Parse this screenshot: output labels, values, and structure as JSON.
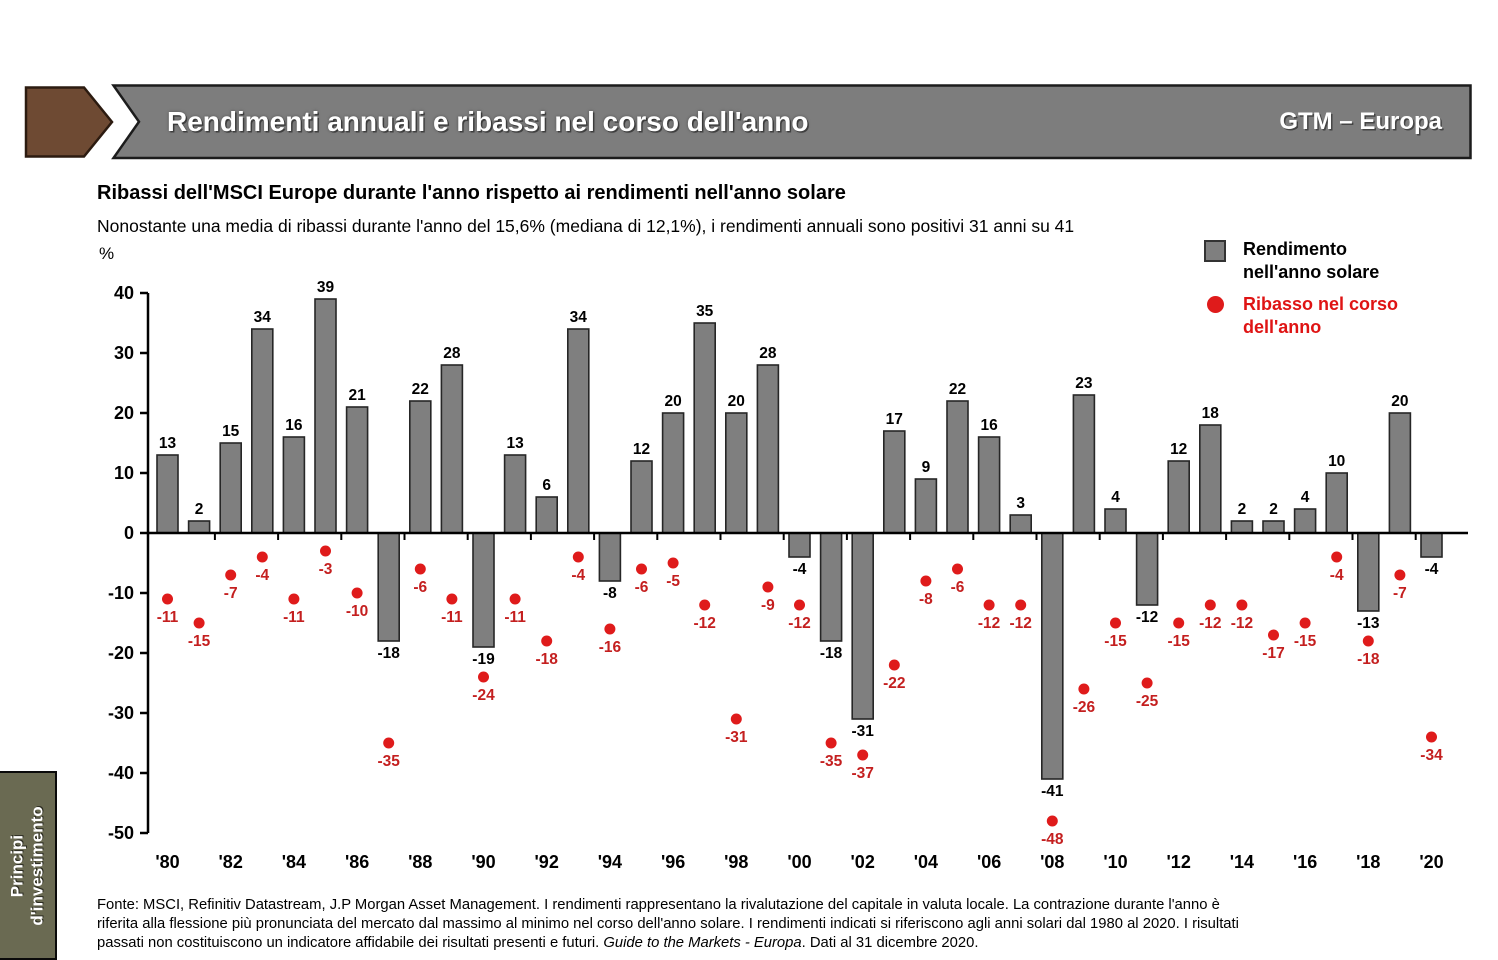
{
  "header": {
    "title": "Rendimenti annuali e ribassi nel corso dell'anno",
    "edition": "GTM – Europa"
  },
  "sidebar": {
    "line1": "Principi",
    "line2": "d'investimento"
  },
  "intro": {
    "heading": "Ribassi dell'MSCI Europe durante l'anno rispetto ai rendimenti nell'anno solare",
    "description": "Nonostante una media di ribassi durante l'anno del 15,6% (mediana di 12,1%), i rendimenti annuali sono positivi 31 anni su 41",
    "unit_label": "%"
  },
  "legend": {
    "bar_label": "Rendimento nell'anno solare",
    "dot_label": "Ribasso nel corso dell'anno",
    "bar_color": "#7f7f7f",
    "dot_color": "#df1b1b"
  },
  "chart_data": {
    "type": "bar",
    "title": "Ribassi dell'MSCI Europe durante l'anno rispetto ai rendimenti nell'anno solare",
    "subtitle": "Nonostante una media di ribassi durante l'anno del 15,6% (mediana di 12,1%), i rendimenti annuali sono positivi 31 anni su 41",
    "unit": "%",
    "grid": false,
    "legend_position": "top-right",
    "ylim": [
      -50,
      40
    ],
    "ytick_step": 10,
    "years": [
      1980,
      1981,
      1982,
      1983,
      1984,
      1985,
      1986,
      1987,
      1988,
      1989,
      1990,
      1991,
      1992,
      1993,
      1994,
      1995,
      1996,
      1997,
      1998,
      1999,
      2000,
      2001,
      2002,
      2003,
      2004,
      2005,
      2006,
      2007,
      2008,
      2009,
      2010,
      2011,
      2012,
      2013,
      2014,
      2015,
      2016,
      2017,
      2018,
      2019,
      2020
    ],
    "x_tick_labels": [
      "'80",
      "'82",
      "'84",
      "'86",
      "'88",
      "'90",
      "'92",
      "'94",
      "'96",
      "'98",
      "'00",
      "'02",
      "'04",
      "'06",
      "'08",
      "'10",
      "'12",
      "'14",
      "'16",
      "'18",
      "'20"
    ],
    "series": [
      {
        "name": "Rendimento nell'anno solare",
        "type": "bar",
        "color": "#7f7f7f",
        "values": [
          13,
          2,
          15,
          34,
          16,
          39,
          21,
          -18,
          22,
          28,
          -19,
          13,
          6,
          34,
          -8,
          12,
          20,
          35,
          20,
          28,
          -4,
          -18,
          -31,
          17,
          9,
          22,
          16,
          3,
          -41,
          23,
          4,
          -12,
          12,
          18,
          2,
          2,
          4,
          10,
          -13,
          20,
          -4
        ]
      },
      {
        "name": "Ribasso nel corso dell'anno",
        "type": "scatter",
        "color": "#df1b1b",
        "values": [
          -11,
          -15,
          -7,
          -4,
          -11,
          -3,
          -10,
          -35,
          -6,
          -11,
          -24,
          -11,
          -18,
          -4,
          -16,
          -6,
          -5,
          -12,
          -31,
          -9,
          -12,
          -35,
          -37,
          -22,
          -8,
          -6,
          -12,
          -12,
          -48,
          -26,
          -15,
          -25,
          -15,
          -12,
          -12,
          -17,
          -15,
          -4,
          -18,
          -7,
          -34
        ]
      }
    ]
  },
  "footer": {
    "before_italic": "Fonte: MSCI, Refinitiv Datastream, J.P Morgan Asset Management. I rendimenti rappresentano la rivalutazione del capitale in valuta locale. La contrazione durante l'anno è riferita alla flessione più pronunciata del mercato dal massimo al minimo nel corso dell'anno solare. I rendimenti indicati si riferiscono agli anni solari dal 1980 al 2020. I risultati passati non costituiscono un indicatore affidabile dei risultati presenti e futuri. ",
    "italic": "Guide to the Markets - Europa",
    "after_italic": ". Dati al 31 dicembre 2020."
  }
}
